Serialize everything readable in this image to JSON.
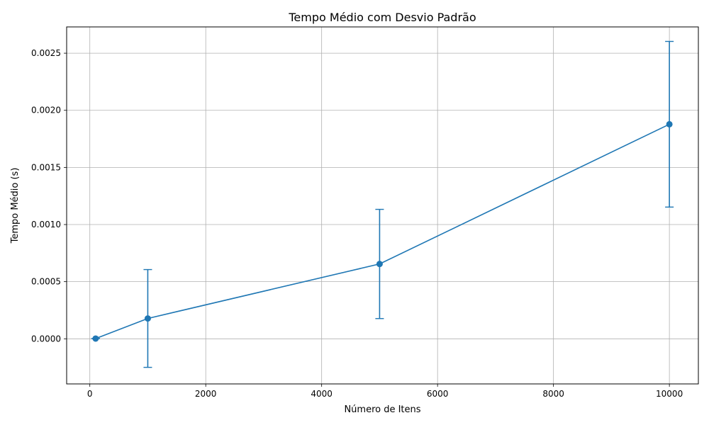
{
  "chart_data": {
    "type": "line",
    "title": "Tempo Médio com Desvio Padrão",
    "xlabel": "Número de Itens",
    "ylabel": "Tempo Médio (s)",
    "xlim": [
      -400,
      10500
    ],
    "ylim": [
      -0.000395,
      0.00273
    ],
    "xticks": [
      0,
      2000,
      4000,
      6000,
      8000,
      10000
    ],
    "xtick_labels": [
      "0",
      "2000",
      "4000",
      "6000",
      "8000",
      "10000"
    ],
    "yticks": [
      0,
      0.0005,
      0.001,
      0.0015,
      0.002,
      0.0025
    ],
    "ytick_labels": [
      "0.0000",
      "0.0005",
      "0.0010",
      "0.0015",
      "0.0020",
      "0.0025"
    ],
    "grid": true,
    "color": "#1f77b4",
    "series": [
      {
        "x": [
          100,
          1000,
          5000,
          10000
        ],
        "y": [
          2e-06,
          0.000178,
          0.000655,
          0.001878
        ],
        "error": [
          5e-07,
          0.000428,
          0.000478,
          0.000725
        ]
      }
    ]
  }
}
